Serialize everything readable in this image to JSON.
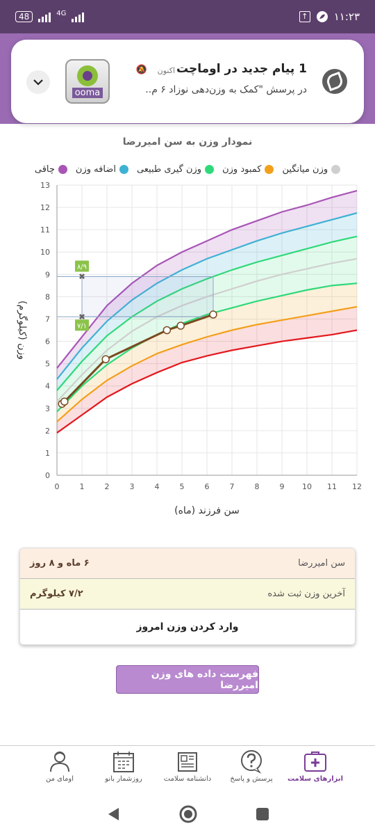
{
  "status_bar": {
    "battery": "48",
    "network": "4G",
    "time": "۱۱:۲۳",
    "upload_indicator": "↑"
  },
  "notification": {
    "title": "1 پیام جدید در اوماچت",
    "time": "اکنون",
    "body": "در پرسش \"کمک به وزن‌دهی نوزاد ۶ م..",
    "app_name": "ooma"
  },
  "chart_title": "نمودار وزن به سن امیررضا",
  "legend": [
    {
      "label": "چاقی",
      "color": "#a855b5"
    },
    {
      "label": "اضافه وزن",
      "color": "#3fb1d3"
    },
    {
      "label": "وزن گیری طبیعی",
      "color": "#2fd97a"
    },
    {
      "label": "کمبود وزن",
      "color": "#f2a01b"
    },
    {
      "label": "وزن میانگین",
      "color": "#cfcfcf"
    }
  ],
  "chart_data": {
    "type": "line",
    "xlabel": "سن فرزند (ماه)",
    "ylabel": "وزن (کیلوگرم)",
    "xlim": [
      0,
      12
    ],
    "ylim": [
      0,
      13
    ],
    "x_ticks": [
      0,
      1,
      2,
      3,
      4,
      5,
      6,
      7,
      8,
      9,
      10,
      11,
      12
    ],
    "y_ticks": [
      0,
      1,
      2,
      3,
      4,
      5,
      6,
      7,
      8,
      9,
      10,
      11,
      12,
      13
    ],
    "x": [
      0,
      1,
      2,
      3,
      4,
      5,
      6,
      7,
      8,
      9,
      10,
      11,
      12
    ],
    "series": [
      {
        "name": "چاقی",
        "color": "#a855b5",
        "values": [
          4.8,
          6.2,
          7.6,
          8.6,
          9.4,
          10.0,
          10.5,
          11.0,
          11.4,
          11.8,
          12.1,
          12.45,
          12.75
        ]
      },
      {
        "name": "اضافه وزن",
        "color": "#3fb1d3",
        "values": [
          4.3,
          5.7,
          6.9,
          7.85,
          8.6,
          9.2,
          9.7,
          10.1,
          10.5,
          10.85,
          11.15,
          11.45,
          11.75
        ]
      },
      {
        "name": "وزن گیری طبیعی",
        "color": "#2fd97a",
        "values": [
          3.8,
          5.1,
          6.25,
          7.1,
          7.8,
          8.35,
          8.8,
          9.2,
          9.55,
          9.85,
          10.15,
          10.45,
          10.7
        ]
      },
      {
        "name": "وزن میانگین",
        "color": "#cfcfcf",
        "values": [
          3.3,
          4.5,
          5.6,
          6.45,
          7.1,
          7.6,
          8.0,
          8.35,
          8.7,
          9.0,
          9.25,
          9.5,
          9.7
        ]
      },
      {
        "name": "وزن گیری طبیعی",
        "color": "#2fd97a",
        "values": [
          2.85,
          4.0,
          4.95,
          5.7,
          6.3,
          6.8,
          7.2,
          7.5,
          7.8,
          8.05,
          8.3,
          8.5,
          8.6
        ]
      },
      {
        "name": "کمبود وزن",
        "color": "#f2a01b",
        "values": [
          2.4,
          3.4,
          4.25,
          4.9,
          5.45,
          5.85,
          6.2,
          6.5,
          6.75,
          6.95,
          7.15,
          7.35,
          7.55
        ]
      },
      {
        "name": "red",
        "color": "#e3181e",
        "values": [
          1.9,
          2.7,
          3.5,
          4.1,
          4.6,
          5.05,
          5.35,
          5.6,
          5.8,
          6.0,
          6.15,
          6.3,
          6.5
        ]
      }
    ],
    "child_weights": {
      "color": "#7a4a1f",
      "points": [
        [
          0.2,
          3.2
        ],
        [
          0.3,
          3.3
        ],
        [
          1.95,
          5.2
        ],
        [
          4.4,
          6.5
        ],
        [
          4.95,
          6.7
        ],
        [
          6.25,
          7.2
        ]
      ]
    },
    "projection": {
      "x": 1,
      "upper": 8.9,
      "lower": 7.1,
      "upper_label": "۸/۹",
      "lower_label": "۷/۱",
      "to_x": 6.25
    }
  },
  "info": {
    "age_label": "سن امیررضا",
    "age_value": "۶ ماه و ۸ روز",
    "weight_label": "آخرین وزن ثبت شده",
    "weight_value": "۷/۲ کیلوگرم",
    "enter_weight": "وارد کردن وزن امروز"
  },
  "list_button": "فهرست داده های وزن امیررضا",
  "bottom_nav": [
    {
      "label": "ابزارهای سلامت",
      "icon": "health-kit-icon",
      "active": true
    },
    {
      "label": "پرسش و پاسخ",
      "icon": "question-icon",
      "active": false
    },
    {
      "label": "دانشنامه سلامت",
      "icon": "encyclopedia-icon",
      "active": false
    },
    {
      "label": "روزشمار بانو",
      "icon": "calendar-icon",
      "active": false
    },
    {
      "label": "اومای من",
      "icon": "profile-icon",
      "active": false
    }
  ]
}
